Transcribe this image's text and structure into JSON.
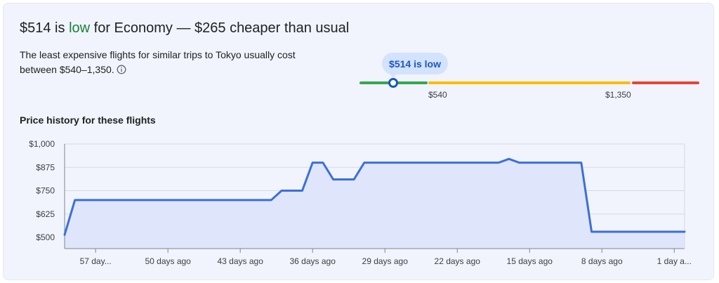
{
  "headline": {
    "price": "$514",
    "is_text": " is ",
    "level": "low",
    "rest": " for Economy — $265 cheaper than usual"
  },
  "description": "The least expensive flights for similar trips to Tokyo usually cost between $540–1,350.",
  "gauge": {
    "bubble_label": "$514 is low",
    "low_threshold": "$540",
    "high_threshold": "$1,350",
    "colors": {
      "low": "#34a853",
      "typical": "#fbbc04",
      "high": "#ea4335",
      "marker": "#1a56c4"
    }
  },
  "chart_title": "Price history for these flights",
  "chart_data": {
    "type": "line",
    "y_ticks": [
      "$1,000",
      "$875",
      "$750",
      "$625",
      "$500"
    ],
    "y_tick_values": [
      1000,
      875,
      750,
      625,
      500
    ],
    "ylim": [
      440,
      1000
    ],
    "x_ticks": [
      "57 day...",
      "50 days ago",
      "43 days ago",
      "36 days ago",
      "29 days ago",
      "22 days ago",
      "15 days ago",
      "8 days ago",
      "1 day a..."
    ],
    "x_tick_values": [
      57,
      50,
      43,
      36,
      29,
      22,
      15,
      8,
      1
    ],
    "xlim": [
      60,
      0
    ],
    "grid": true,
    "color": "#3b6fdb",
    "fill": "#dfe6fb",
    "series": [
      {
        "points": [
          [
            60,
            514
          ],
          [
            59,
            700
          ],
          [
            40,
            700
          ],
          [
            39,
            750
          ],
          [
            37,
            750
          ],
          [
            36,
            900
          ],
          [
            35,
            900
          ],
          [
            34,
            810
          ],
          [
            32,
            810
          ],
          [
            31,
            900
          ],
          [
            18,
            900
          ],
          [
            17,
            920
          ],
          [
            16,
            900
          ],
          [
            10,
            900
          ],
          [
            9,
            530
          ],
          [
            0,
            530
          ]
        ]
      }
    ]
  }
}
